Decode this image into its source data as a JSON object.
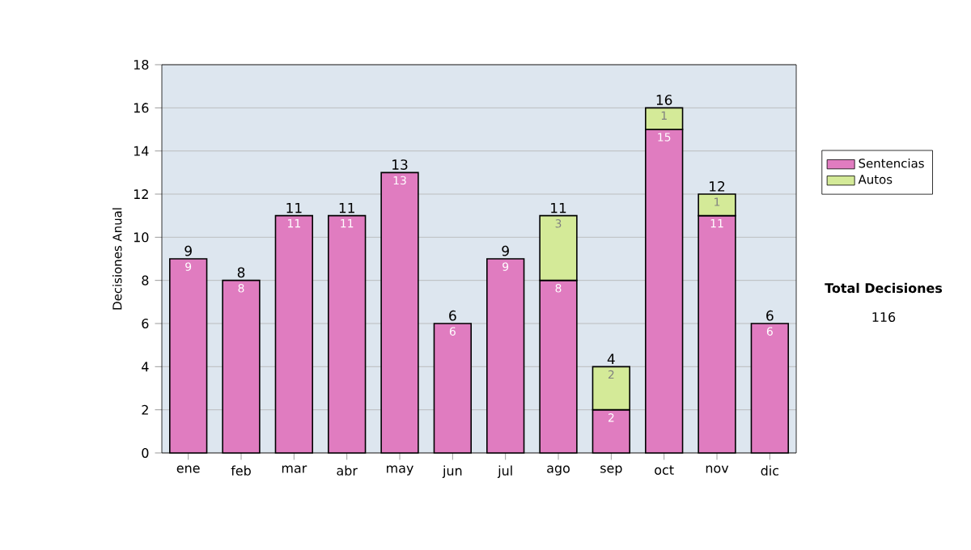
{
  "chart_data": {
    "type": "bar",
    "stacked": true,
    "ylabel": "Decisiones Anual",
    "categories": [
      "ene",
      "feb",
      "mar",
      "abr",
      "may",
      "jun",
      "jul",
      "ago",
      "sep",
      "oct",
      "nov",
      "dic"
    ],
    "series": [
      {
        "name": "Sentencias",
        "color": "#e07cc0",
        "values": [
          9,
          8,
          11,
          11,
          13,
          6,
          9,
          8,
          2,
          15,
          11,
          6
        ]
      },
      {
        "name": "Autos",
        "color": "#d4ea98",
        "values": [
          null,
          null,
          null,
          null,
          null,
          null,
          null,
          3,
          2,
          1,
          1,
          null
        ]
      }
    ],
    "totals": [
      "9",
      "8",
      "11",
      "11",
      "13",
      "6",
      "9",
      "11",
      "4",
      "16",
      "12",
      "6"
    ],
    "data_labels": true,
    "ylim": [
      0,
      18
    ],
    "yticks": [
      0,
      2,
      4,
      6,
      8,
      10,
      12,
      14,
      16,
      18
    ],
    "grid": "y",
    "legend": "right",
    "annotations": [
      "**Total Decisiones**",
      "116"
    ]
  }
}
